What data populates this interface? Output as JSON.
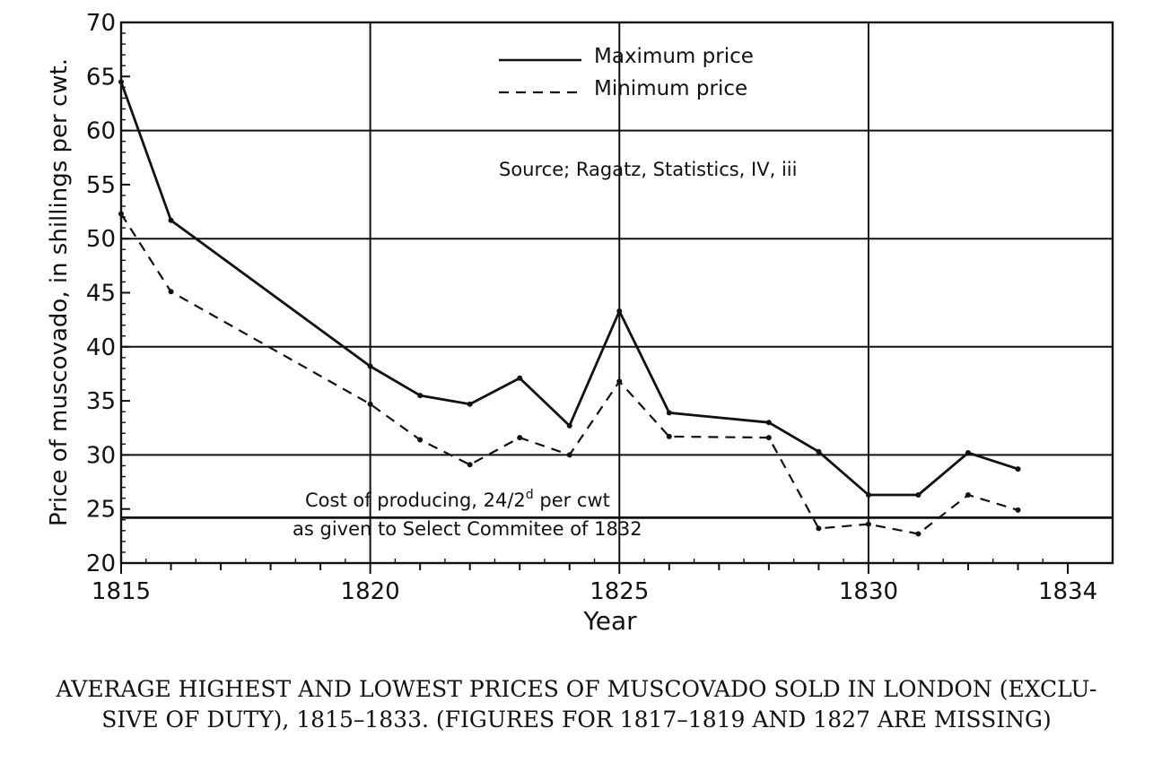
{
  "chart_data": {
    "type": "line",
    "xlabel": "Year",
    "ylabel": "Price of muscovado, in shillings per cwt.",
    "xlim": [
      1815,
      1834.9
    ],
    "ylim": [
      20,
      70
    ],
    "x_ticks": [
      "1815",
      "1820",
      "1825",
      "1830",
      "1834"
    ],
    "y_ticks": [
      "20",
      "25",
      "30",
      "35",
      "40",
      "45",
      "50",
      "55",
      "60",
      "65",
      "70"
    ],
    "series": [
      {
        "name": "Maximum price",
        "style": "solid",
        "points": [
          [
            1815,
            64.5
          ],
          [
            1816,
            51.7
          ],
          [
            1820,
            38.2
          ],
          [
            1821,
            35.5
          ],
          [
            1822,
            34.7
          ],
          [
            1823,
            37.1
          ],
          [
            1824,
            32.7
          ],
          [
            1825,
            43.3
          ],
          [
            1826,
            33.9
          ],
          [
            1828,
            33.0
          ],
          [
            1829,
            30.3
          ],
          [
            1830,
            26.3
          ],
          [
            1831,
            26.3
          ],
          [
            1832,
            30.2
          ],
          [
            1833,
            28.7
          ]
        ]
      },
      {
        "name": "Minimum price",
        "style": "dashed",
        "points": [
          [
            1815,
            52.3
          ],
          [
            1816,
            45.1
          ],
          [
            1820,
            34.7
          ],
          [
            1821,
            31.4
          ],
          [
            1822,
            29.1
          ],
          [
            1823,
            31.6
          ],
          [
            1824,
            30.0
          ],
          [
            1825,
            36.8
          ],
          [
            1826,
            31.7
          ],
          [
            1828,
            31.6
          ],
          [
            1829,
            23.2
          ],
          [
            1830,
            23.6
          ],
          [
            1831,
            22.7
          ],
          [
            1832,
            26.3
          ],
          [
            1833,
            24.9
          ]
        ]
      }
    ],
    "reference_line": {
      "value": 24.2,
      "label_line1": "Cost of producing, 24/2",
      "label_sup": "d",
      "label_line1_end": " per cwt",
      "label_line2": "as given to Select Commitee of 1832"
    },
    "source_note": "Source; Ragatz, Statistics, IV, iii",
    "legend_position": "top-center",
    "grid": true
  },
  "caption": {
    "line1": "AVERAGE HIGHEST AND LOWEST PRICES OF MUSCOVADO SOLD IN LONDON (EXCLU-",
    "line2": "SIVE OF DUTY), 1815–1833. (FIGURES FOR 1817–1819 AND 1827 ARE MISSING)"
  }
}
